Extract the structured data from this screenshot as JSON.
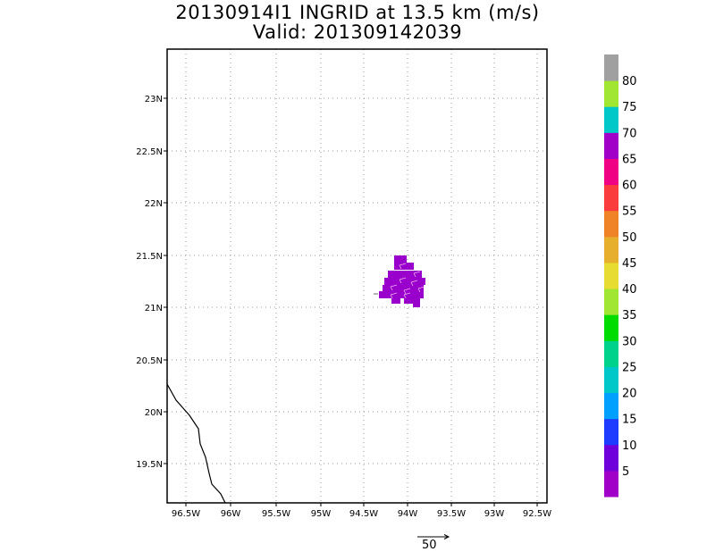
{
  "title": {
    "line1": "20130914I1 INGRID at 13.5 km (m/s)",
    "line2": "Valid: 201309142039"
  },
  "map": {
    "x_ticks": [
      "96.5W",
      "96W",
      "95.5W",
      "95W",
      "94.5W",
      "94W",
      "93.5W",
      "93W",
      "92.5W"
    ],
    "y_ticks": [
      "23N",
      "22.5N",
      "22N",
      "21.5N",
      "21N",
      "20.5N",
      "20N",
      "19.5N"
    ],
    "lon_range": [
      -96.8,
      -92.5
    ],
    "lat_range": [
      19.15,
      23.5
    ],
    "grid": true,
    "wind_speed_field_color": "#9900cc"
  },
  "colorbar": {
    "labels": [
      "5",
      "10",
      "15",
      "20",
      "25",
      "30",
      "35",
      "40",
      "45",
      "50",
      "55",
      "60",
      "65",
      "70",
      "75",
      "80"
    ],
    "colors": [
      "#a000c8",
      "#6e00dc",
      "#1e3cff",
      "#00a0ff",
      "#00c8c8",
      "#00d28c",
      "#00dc00",
      "#a0e632",
      "#e6dc32",
      "#e6af2d",
      "#f08228",
      "#fa3c3c",
      "#f00082",
      "#a000c8",
      "#00c8c8",
      "#a0e632",
      "#a0a0a0"
    ]
  },
  "reference_vector": {
    "label": "50"
  }
}
